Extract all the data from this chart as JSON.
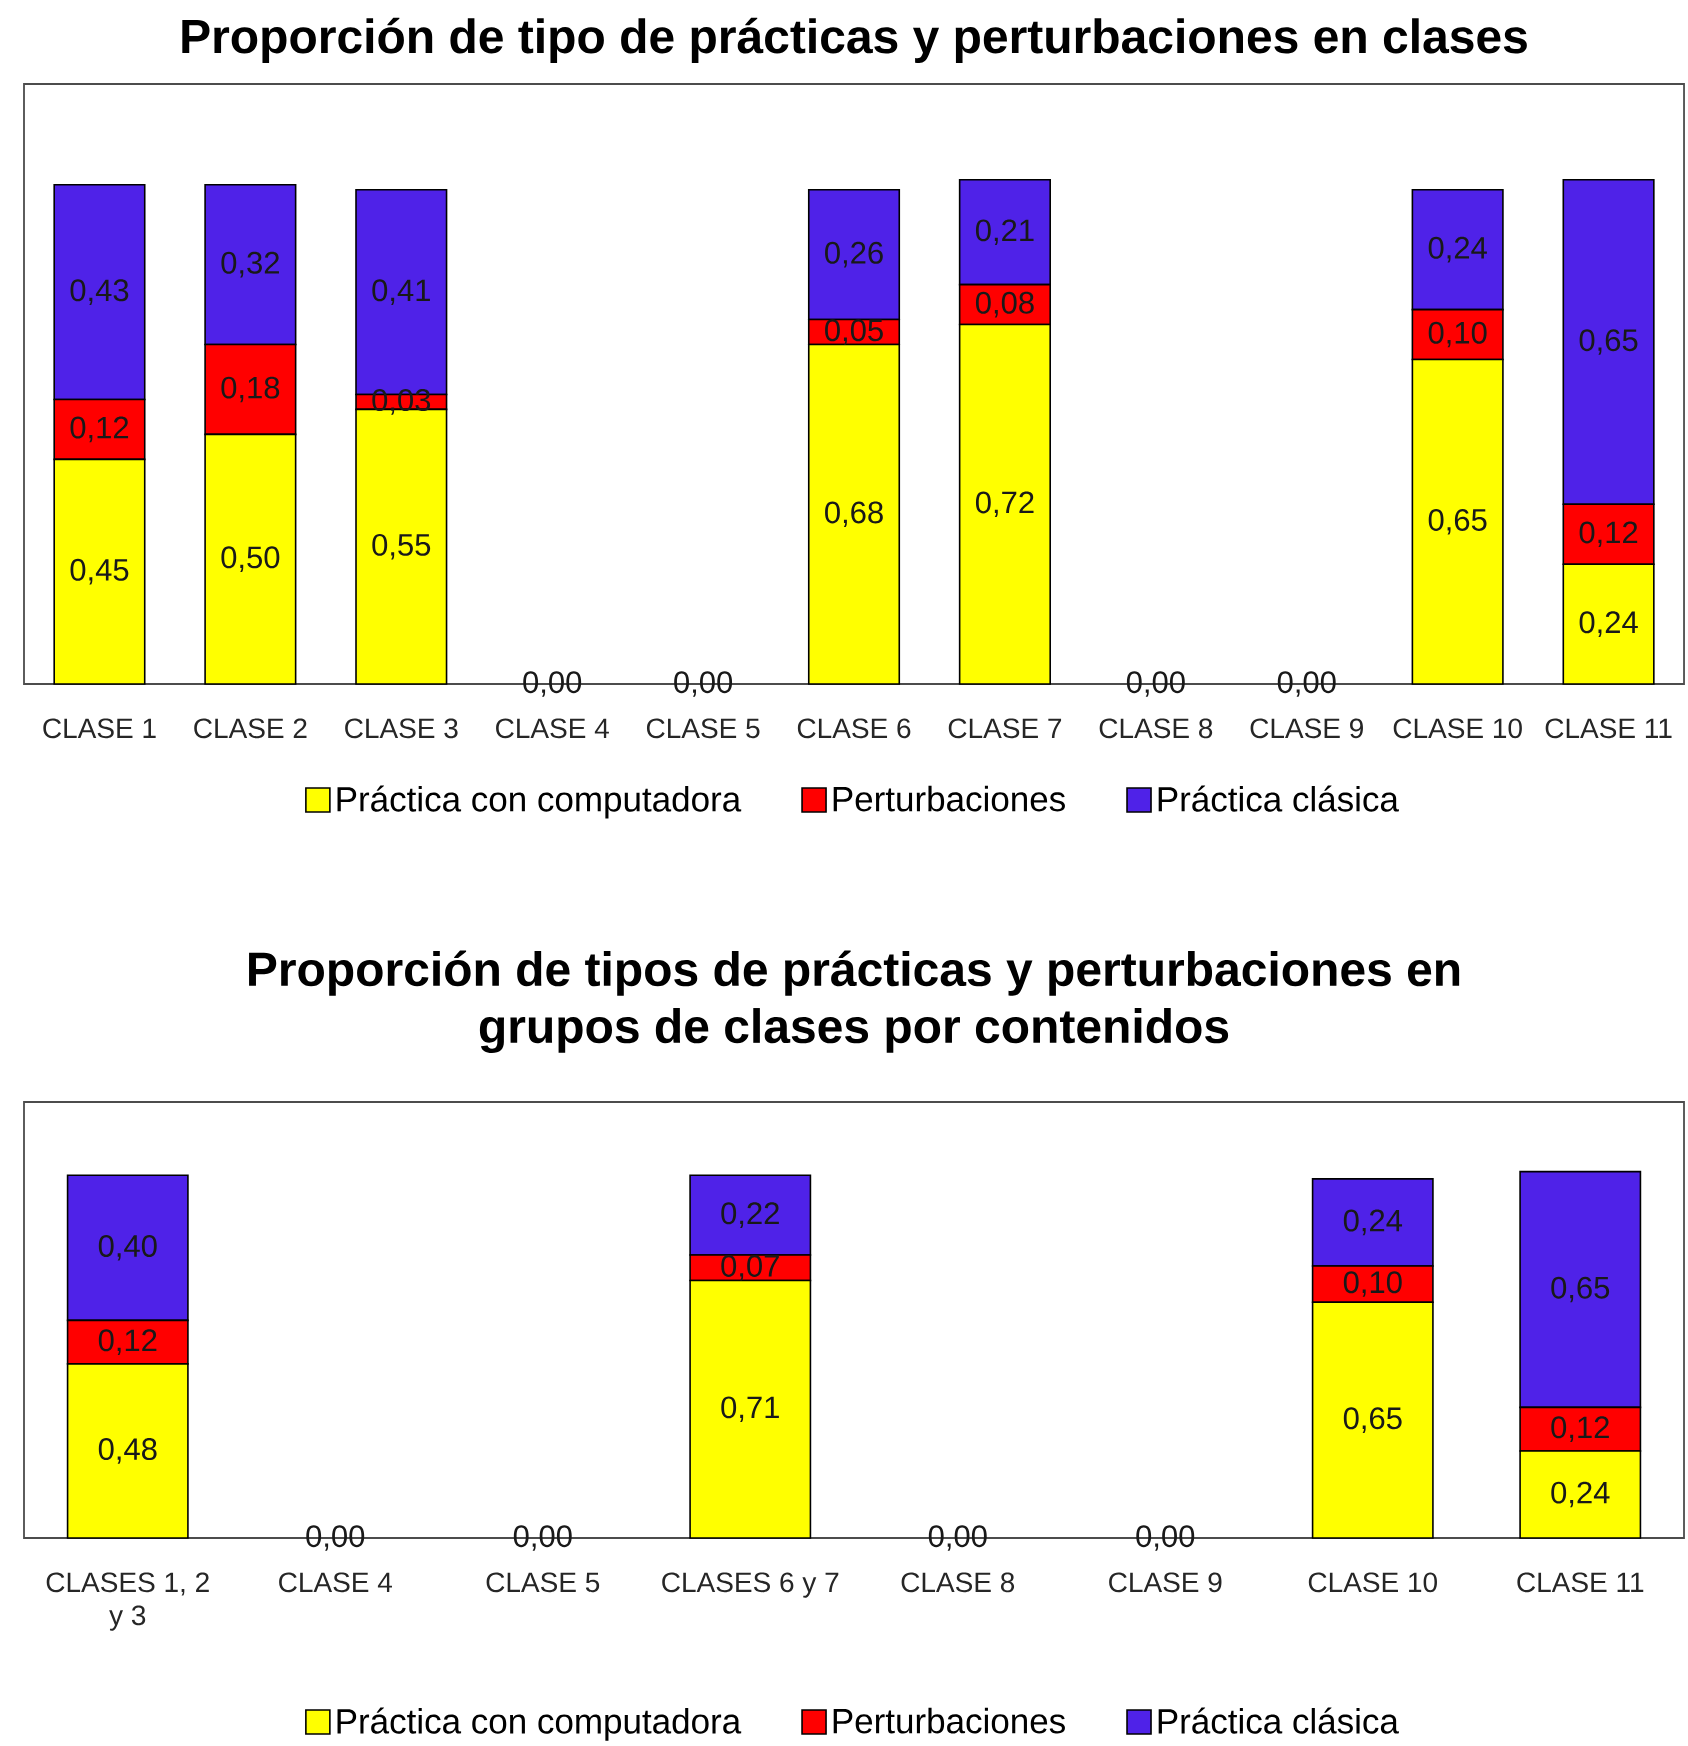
{
  "chart_data": [
    {
      "type": "bar",
      "title": "Proporción de tipo de prácticas y perturbaciones en clases",
      "stacked": true,
      "legend": "bottom",
      "tick_labels": "x",
      "categories": [
        "CLASE 1",
        "CLASE 2",
        "CLASE 3",
        "CLASE 4",
        "CLASE 5",
        "CLASE 6",
        "CLASE 7",
        "CLASE 8",
        "CLASE 9",
        "CLASE 10",
        "CLASE 11"
      ],
      "series": [
        {
          "name": "Práctica con computadora",
          "color": "#ffff00",
          "values": [
            0.45,
            0.5,
            0.55,
            0,
            0,
            0.68,
            0.72,
            0,
            0,
            0.65,
            0.24
          ],
          "value_labels": [
            "0,45",
            "0,50",
            "0,55",
            "0,00",
            "0,00",
            "0,68",
            "0,72",
            "0,00",
            "0,00",
            "0,65",
            "0,24"
          ]
        },
        {
          "name": "Perturbaciones",
          "color": "#ff0000",
          "values": [
            0.12,
            0.18,
            0.03,
            0,
            0,
            0.05,
            0.08,
            0,
            0,
            0.1,
            0.12
          ],
          "value_labels": [
            "0,12",
            "0,18",
            "0,03",
            null,
            null,
            "0,05",
            "0,08",
            null,
            null,
            "0,10",
            "0,12"
          ]
        },
        {
          "name": "Práctica clásica",
          "color": "#4f22e8",
          "values": [
            0.43,
            0.32,
            0.41,
            0,
            0,
            0.26,
            0.21,
            0,
            0,
            0.24,
            0.65
          ],
          "value_labels": [
            "0,43",
            "0,32",
            "0,41",
            null,
            null,
            "0,26",
            "0,21",
            null,
            null,
            "0,24",
            "0,65"
          ]
        }
      ]
    },
    {
      "type": "bar",
      "title": "Proporción de tipos de prácticas y perturbaciones en grupos de clases por contenidos",
      "stacked": true,
      "legend": "bottom",
      "tick_labels": "x",
      "categories": [
        "CLASES 1, 2 y 3",
        "CLASE 4",
        "CLASE 5",
        "CLASES 6 y 7",
        "CLASE 8",
        "CLASE 9",
        "CLASE 10",
        "CLASE 11"
      ],
      "series": [
        {
          "name": "Práctica con computadora",
          "color": "#ffff00",
          "values": [
            0.48,
            0,
            0,
            0.71,
            0,
            0,
            0.65,
            0.24
          ],
          "value_labels": [
            "0,48",
            "0,00",
            "0,00",
            "0,71",
            "0,00",
            "0,00",
            "0,65",
            "0,24"
          ]
        },
        {
          "name": "Perturbaciones",
          "color": "#ff0000",
          "values": [
            0.12,
            0,
            0,
            0.07,
            0,
            0,
            0.1,
            0.12
          ],
          "value_labels": [
            "0,12",
            null,
            null,
            "0,07",
            null,
            null,
            "0,10",
            "0,12"
          ]
        },
        {
          "name": "Práctica clásica",
          "color": "#4f22e8",
          "values": [
            0.4,
            0,
            0,
            0.22,
            0,
            0,
            0.24,
            0.65
          ],
          "value_labels": [
            "0,40",
            null,
            null,
            "0,22",
            null,
            null,
            "0,24",
            "0,65"
          ]
        }
      ]
    }
  ]
}
